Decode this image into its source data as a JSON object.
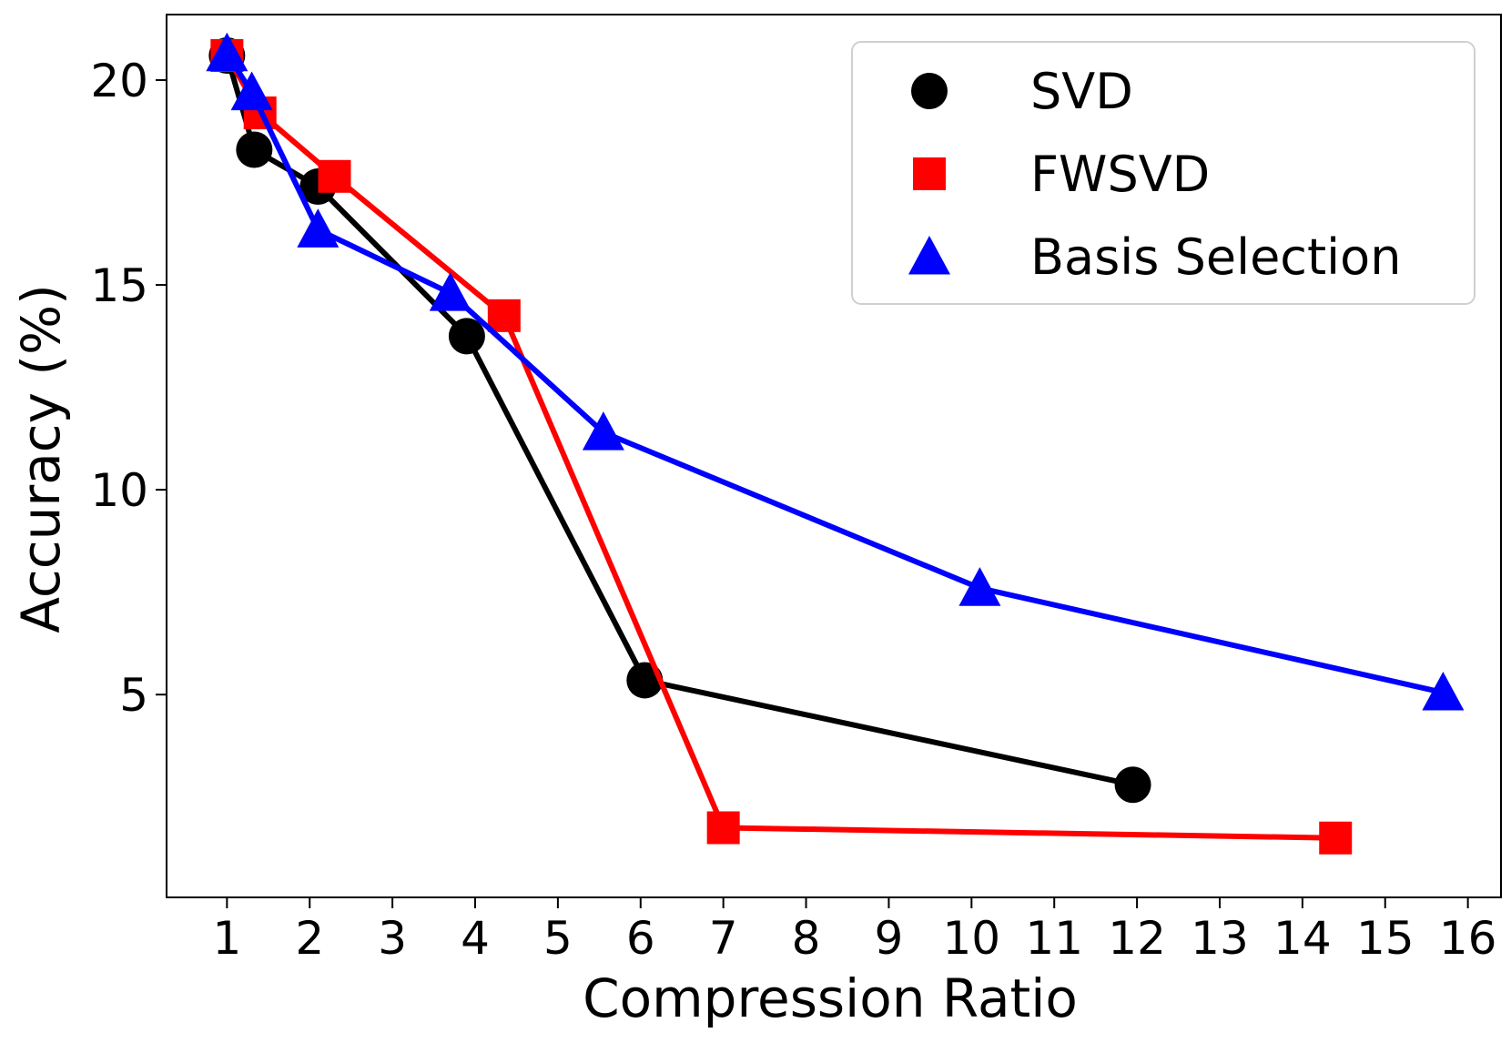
{
  "chart_data": {
    "type": "line",
    "title": "",
    "xlabel": "Compression Ratio",
    "ylabel": "Accuracy (%)",
    "xlim": [
      0.27,
      16.4
    ],
    "ylim": [
      0.05,
      21.6
    ],
    "xticks": [
      1,
      2,
      3,
      4,
      5,
      6,
      7,
      8,
      9,
      10,
      11,
      12,
      13,
      14,
      15,
      16
    ],
    "yticks": [
      5,
      10,
      15,
      20
    ],
    "grid": false,
    "legend_position": "top-right",
    "series": [
      {
        "name": "SVD",
        "color": "#000000",
        "marker": "circle",
        "x": [
          1.0,
          1.33,
          2.1,
          3.9,
          6.05,
          11.95
        ],
        "y": [
          20.6,
          18.3,
          17.4,
          13.75,
          5.35,
          2.8
        ]
      },
      {
        "name": "FWSVD",
        "color": "#ff0000",
        "marker": "square",
        "x": [
          1.0,
          1.4,
          2.3,
          4.35,
          7.0,
          14.4
        ],
        "y": [
          20.6,
          19.2,
          17.65,
          14.25,
          1.75,
          1.5
        ]
      },
      {
        "name": "Basis Selection",
        "color": "#0000ff",
        "marker": "triangle",
        "x": [
          1.0,
          1.3,
          2.1,
          3.7,
          5.55,
          10.1,
          15.7
        ],
        "y": [
          20.65,
          19.7,
          16.35,
          14.8,
          11.4,
          7.6,
          5.05
        ]
      }
    ]
  }
}
